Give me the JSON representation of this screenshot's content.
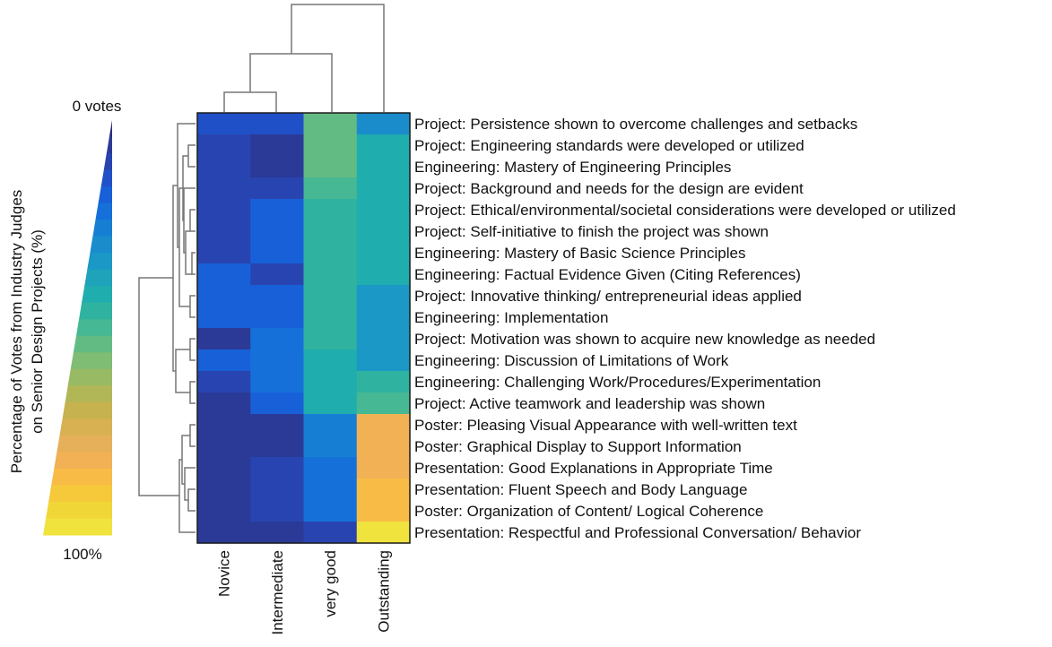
{
  "chart_data": {
    "type": "heatmap",
    "title": "",
    "columns": [
      "Novice",
      "Intermediate",
      "very good",
      "Outstanding"
    ],
    "rows": [
      "Project: Persistence shown to overcome challenges and setbacks",
      "Project: Engineering standards were developed or utilized",
      "Engineering: Mastery of Engineering Principles",
      "Project: Background and needs for the design are evident",
      "Project: Ethical/environmental/societal considerations were developed or utilized",
      "Project: Self-initiative to finish the project was shown",
      "Engineering: Mastery of Basic Science Principles",
      "Engineering: Factual Evidence Given (Citing References)",
      "Project: Innovative thinking/ entrepreneurial ideas applied",
      "Engineering: Implementation",
      "Project: Motivation was shown to acquire new knowledge as needed",
      "Engineering: Discussion of Limitations of Work",
      "Engineering: Challenging Work/Procedures/Experimentation",
      "Project: Active teamwork and leadership was shown",
      "Poster: Pleasing Visual Appearance with well-written text",
      "Poster: Graphical Display to Support Information",
      "Presentation: Good Explanations in Appropriate Time",
      "Presentation: Fluent Speech and Body Language",
      "Poster: Organization of Content/ Logical Coherence",
      "Presentation: Respectful and Professional Conversation/ Behavior"
    ],
    "values": [
      [
        14,
        12,
        55,
        30
      ],
      [
        10,
        3,
        55,
        40
      ],
      [
        10,
        3,
        55,
        40
      ],
      [
        10,
        10,
        50,
        40
      ],
      [
        10,
        17,
        45,
        40
      ],
      [
        10,
        17,
        45,
        40
      ],
      [
        10,
        17,
        45,
        40
      ],
      [
        17,
        10,
        45,
        40
      ],
      [
        17,
        17,
        45,
        35
      ],
      [
        17,
        17,
        45,
        35
      ],
      [
        3,
        22,
        45,
        35
      ],
      [
        17,
        22,
        40,
        35
      ],
      [
        10,
        22,
        40,
        47
      ],
      [
        3,
        17,
        40,
        50
      ],
      [
        3,
        3,
        27,
        82
      ],
      [
        3,
        3,
        27,
        82
      ],
      [
        3,
        10,
        22,
        82
      ],
      [
        3,
        10,
        22,
        88
      ],
      [
        3,
        10,
        22,
        88
      ],
      [
        3,
        3,
        10,
        100
      ]
    ],
    "colorbar": {
      "label_line1": "Percentage of Votes from Industry Judges",
      "label_line2": "on Senior Design Projects (%)",
      "top_label": "0 votes",
      "bottom_label": "100%",
      "colors": [
        "#2c2d7c",
        "#2b3a97",
        "#2844b0",
        "#2050c8",
        "#1860d8",
        "#1670d9",
        "#167fd3",
        "#1a8ccc",
        "#1b98c5",
        "#1ea3bb",
        "#20adad",
        "#2fb3a0",
        "#46b893",
        "#63bb84",
        "#7fbc74",
        "#99ba64",
        "#b1b756",
        "#c6b34f",
        "#d8b152",
        "#e6b05a",
        "#f2b154",
        "#f8bc46",
        "#f5c93a",
        "#f1d638",
        "#f0e33e"
      ]
    },
    "legend": "left",
    "grid": false
  }
}
